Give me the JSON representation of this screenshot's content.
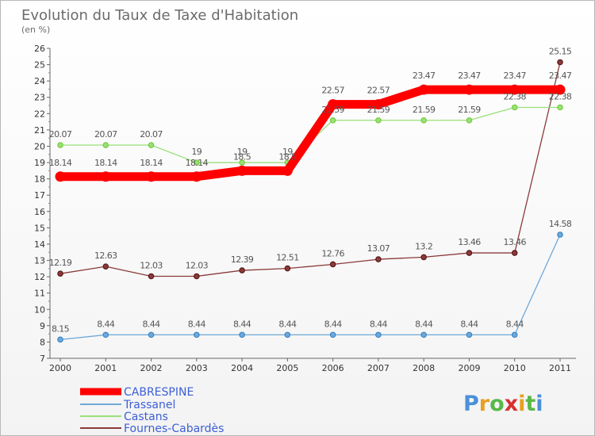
{
  "chart_data": {
    "type": "line",
    "title": "Evolution du Taux de Taxe d'Habitation",
    "unit_label": "(en %)",
    "xlabel": "",
    "ylabel": "",
    "ylim": [
      7,
      26
    ],
    "yticks": [
      "7",
      "8",
      "9",
      "10",
      "11",
      "12",
      "13",
      "14",
      "15",
      "16",
      "17",
      "18",
      "19",
      "20",
      "21",
      "22",
      "23",
      "24",
      "25",
      "26"
    ],
    "categories": [
      "2000",
      "2001",
      "2002",
      "2003",
      "2004",
      "2005",
      "2006",
      "2007",
      "2008",
      "2009",
      "2010",
      "2011"
    ],
    "grid": false,
    "legend_position": "bottom-left",
    "series": [
      {
        "name": "CABRESPINE",
        "color": "#ff0000",
        "values": [
          18.14,
          18.14,
          18.14,
          18.14,
          18.5,
          18.5,
          22.57,
          22.57,
          23.47,
          23.47,
          23.47,
          23.47
        ],
        "labels": [
          "18.14",
          "18.14",
          "18.14",
          "18.14",
          "18.5",
          "18.5",
          "22.57",
          "22.57",
          "23.47",
          "23.47",
          "23.47",
          "23.47"
        ]
      },
      {
        "name": "Trassanel",
        "color": "#6fa8d8",
        "marker": "#3a86c8",
        "values": [
          8.15,
          8.44,
          8.44,
          8.44,
          8.44,
          8.44,
          8.44,
          8.44,
          8.44,
          8.44,
          8.44,
          14.58
        ],
        "labels": [
          "8.15",
          "8.44",
          "8.44",
          "8.44",
          "8.44",
          "8.44",
          "8.44",
          "8.44",
          "8.44",
          "8.44",
          "8.44",
          "14.58"
        ]
      },
      {
        "name": "Castans",
        "color": "#99e07a",
        "marker": "#78cc3c",
        "values": [
          20.07,
          20.07,
          20.07,
          19,
          19,
          19,
          21.59,
          21.59,
          21.59,
          21.59,
          22.38,
          22.38
        ],
        "labels": [
          "20.07",
          "20.07",
          "20.07",
          "19",
          "19",
          "19",
          "21.59",
          "21.59",
          "21.59",
          "21.59",
          "22.38",
          "22.38"
        ]
      },
      {
        "name": "Fournes-Cabardès",
        "color": "#8b3a3a",
        "marker": "#5a1a1a",
        "values": [
          12.19,
          12.63,
          12.03,
          12.03,
          12.39,
          12.51,
          12.76,
          13.07,
          13.2,
          13.46,
          13.46,
          25.15
        ],
        "labels": [
          "12.19",
          "12.63",
          "12.03",
          "12.03",
          "12.39",
          "12.51",
          "12.76",
          "13.07",
          "13.2",
          "13.46",
          "13.46",
          "25.15"
        ]
      }
    ]
  },
  "logo": {
    "letters": [
      "P",
      "r",
      "o",
      "x",
      "i",
      "t",
      "i"
    ],
    "colors": [
      "#4a90d9",
      "#e8a020",
      "#58b848",
      "#d93030",
      "#e8a020",
      "#58b848",
      "#4a90d9"
    ]
  }
}
